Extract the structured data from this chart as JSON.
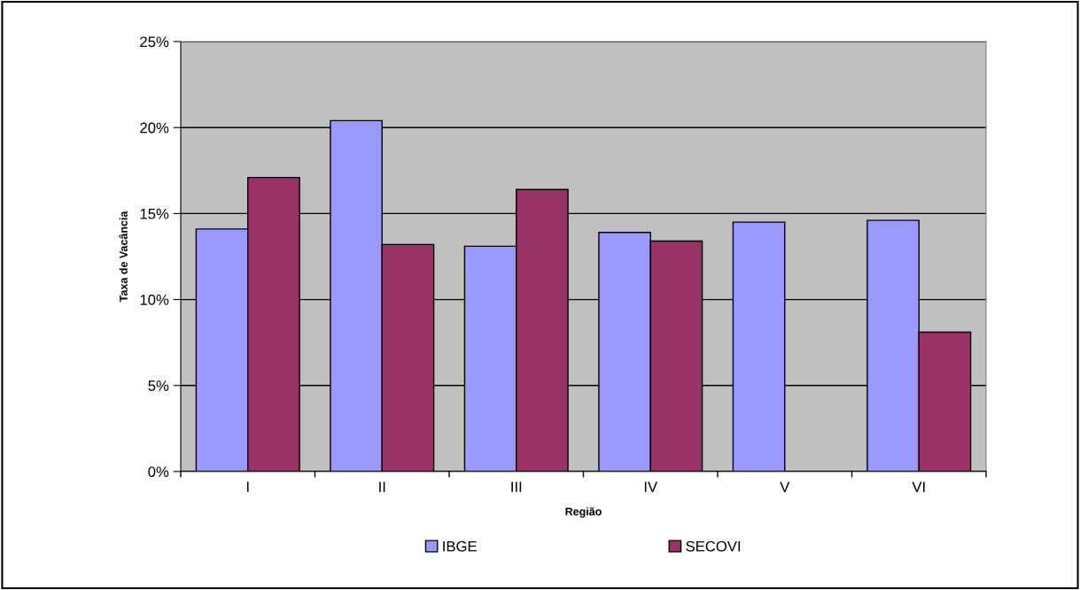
{
  "chart_data": {
    "type": "bar",
    "xlabel": "Região",
    "ylabel": "Taxa de Vacância",
    "categories": [
      "I",
      "II",
      "III",
      "IV",
      "V",
      "VI"
    ],
    "series": [
      {
        "name": "IBGE",
        "color": "#9999ff",
        "values": [
          14.1,
          20.4,
          13.1,
          13.9,
          14.5,
          14.6
        ]
      },
      {
        "name": "SECOVI",
        "color": "#993366",
        "values": [
          17.1,
          13.2,
          16.4,
          13.4,
          null,
          8.1
        ]
      }
    ],
    "ylim": [
      0,
      25
    ],
    "yticks": [
      {
        "value": 0,
        "label": "0%"
      },
      {
        "value": 5,
        "label": "5%"
      },
      {
        "value": 10,
        "label": "10%"
      },
      {
        "value": 15,
        "label": "15%"
      },
      {
        "value": 20,
        "label": "20%"
      },
      {
        "value": 25,
        "label": "25%"
      }
    ],
    "grid": "y",
    "legend": "bottom"
  }
}
